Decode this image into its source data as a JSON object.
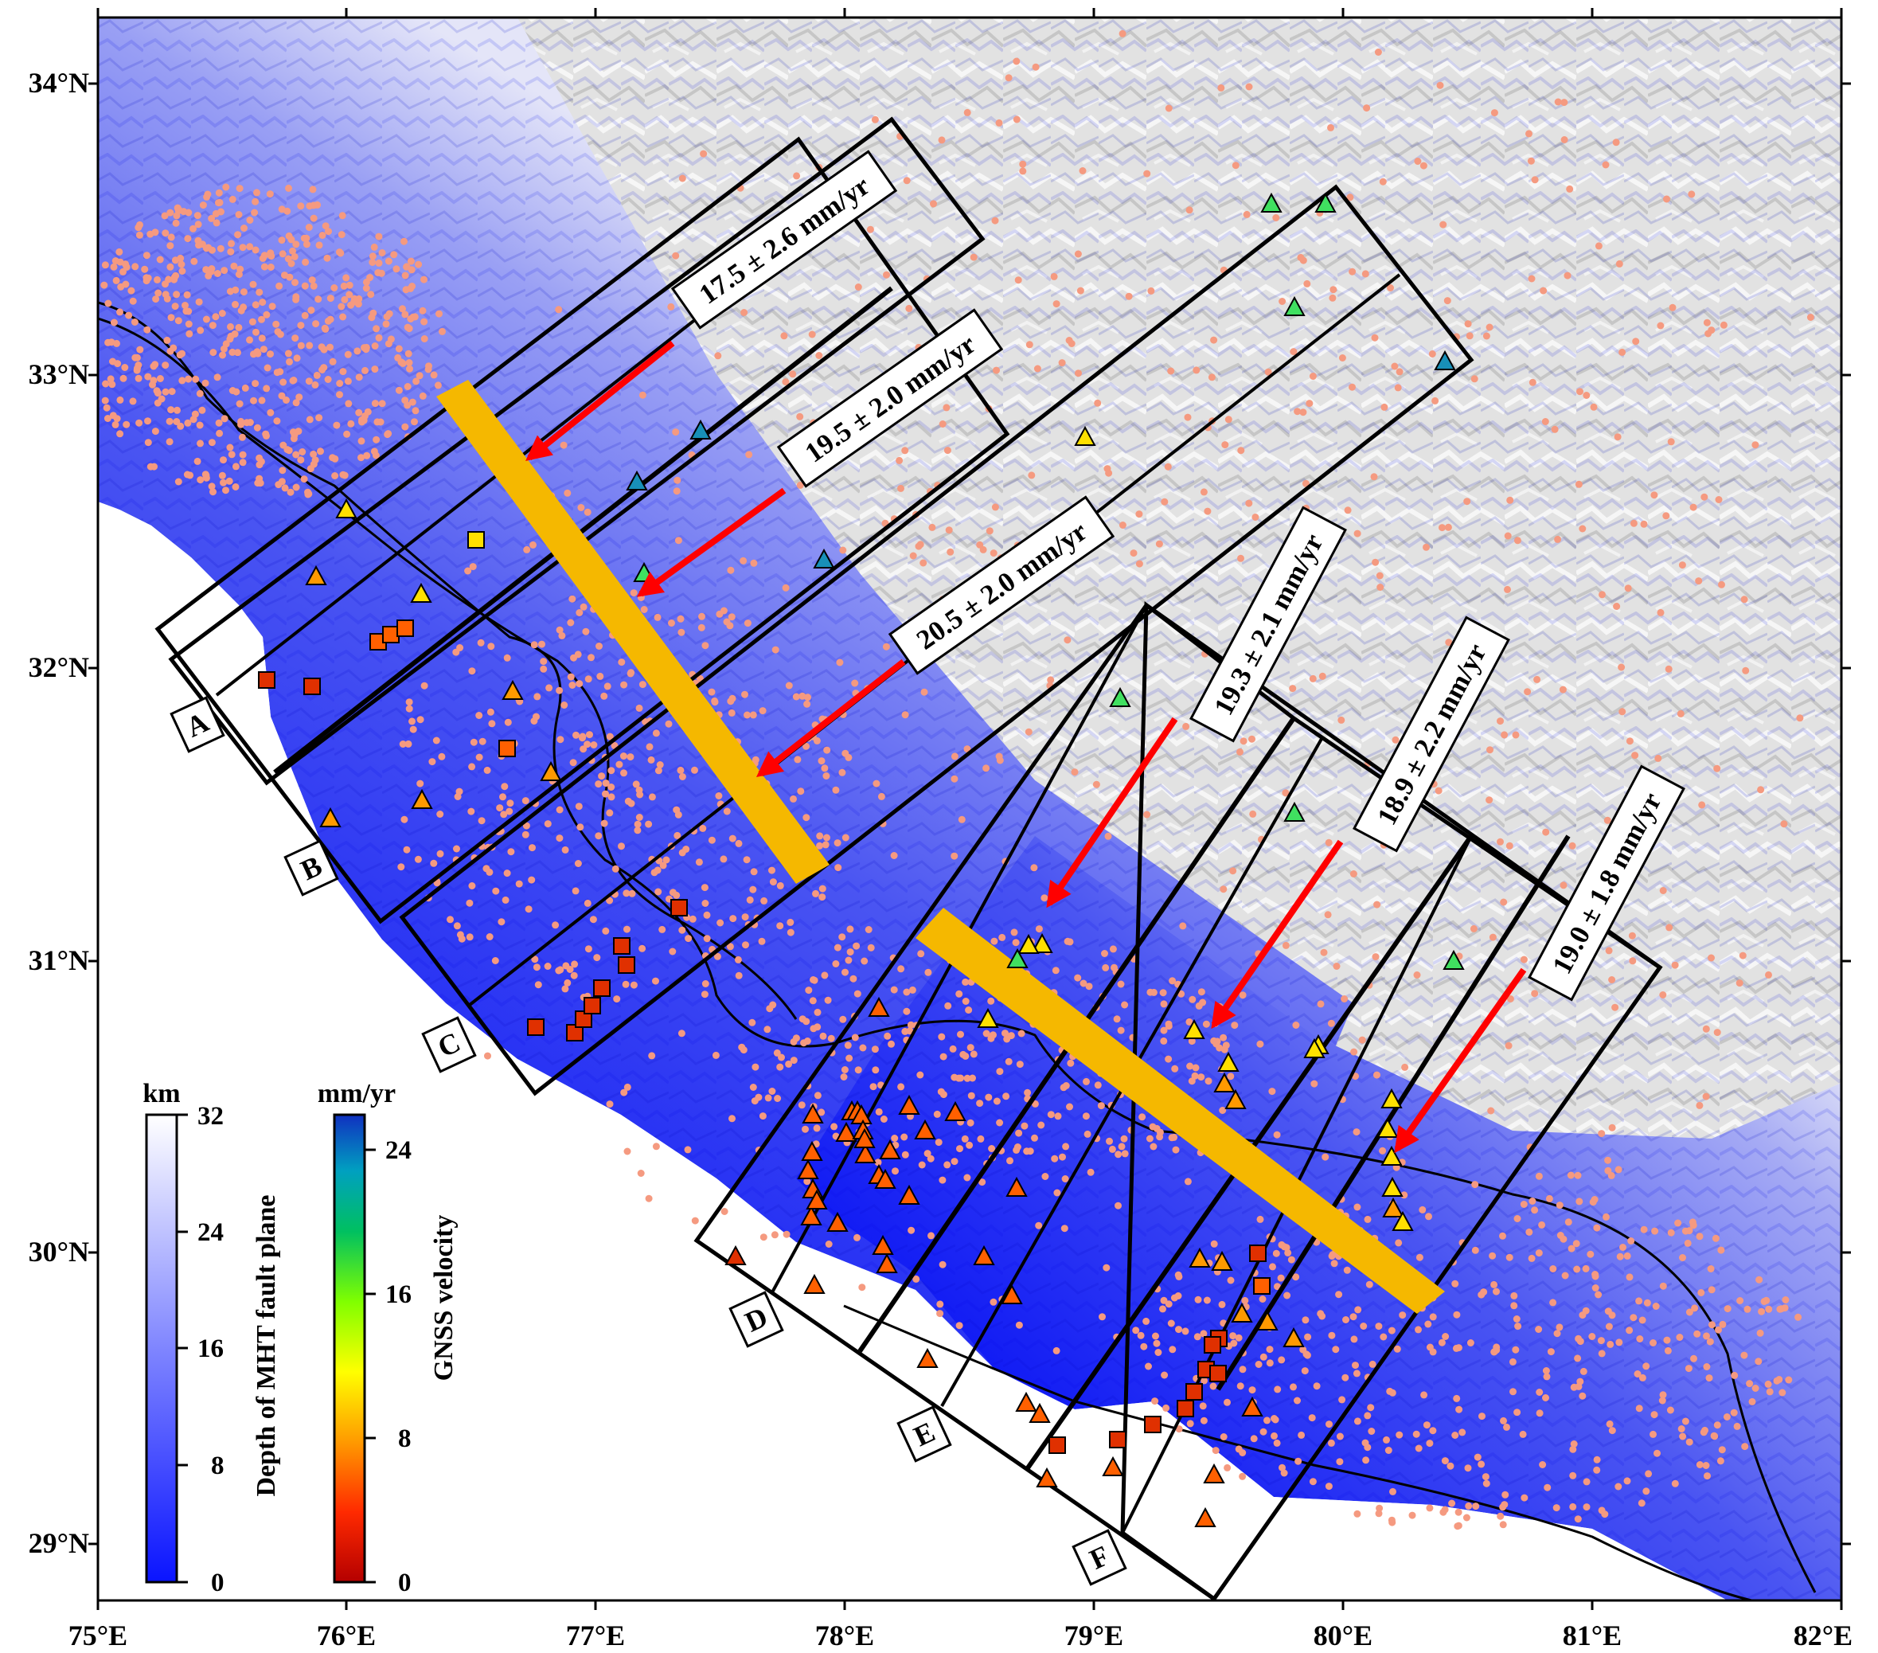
{
  "axes": {
    "lon_labels": [
      "75°E",
      "76°E",
      "77°E",
      "78°E",
      "79°E",
      "80°E",
      "81°E",
      "82°E"
    ],
    "lat_labels": [
      "34°N",
      "33°N",
      "32°N",
      "31°N",
      "30°N",
      "29°N"
    ]
  },
  "rates": [
    {
      "text": "17.5 ± 2.6 mm/yr"
    },
    {
      "text": "19.5 ± 2.0 mm/yr"
    },
    {
      "text": "20.5 ± 2.0 mm/yr"
    },
    {
      "text": "19.3 ± 2.1 mm/yr"
    },
    {
      "text": "18.9 ± 2.2 mm/yr"
    },
    {
      "text": "19.0 ± 1.8 mm/yr"
    }
  ],
  "profiles": [
    "A",
    "B",
    "C",
    "D",
    "E",
    "F"
  ],
  "depth_bar": {
    "unit": "km",
    "title": "Depth of MHT fault plane",
    "ticks": [
      "0",
      "8",
      "16",
      "24",
      "32"
    ],
    "colors": {
      "low": "#0a14ff",
      "high": "#ffffff"
    }
  },
  "velocity_bar": {
    "unit": "mm/yr",
    "title": "GNSS velocity",
    "ticks": [
      "0",
      "8",
      "16",
      "24"
    ],
    "colors": [
      "#b40000",
      "#ff3000",
      "#ff9a00",
      "#ffff00",
      "#80ff00",
      "#00c060",
      "#00a0c0",
      "#1030c0"
    ]
  },
  "colors": {
    "fault_fill": "#3a45f0",
    "rupture_bar": "#f5b800",
    "arrow": "#ff0000",
    "seismicity": "#f59a80",
    "relief": "#dcdcdc"
  }
}
